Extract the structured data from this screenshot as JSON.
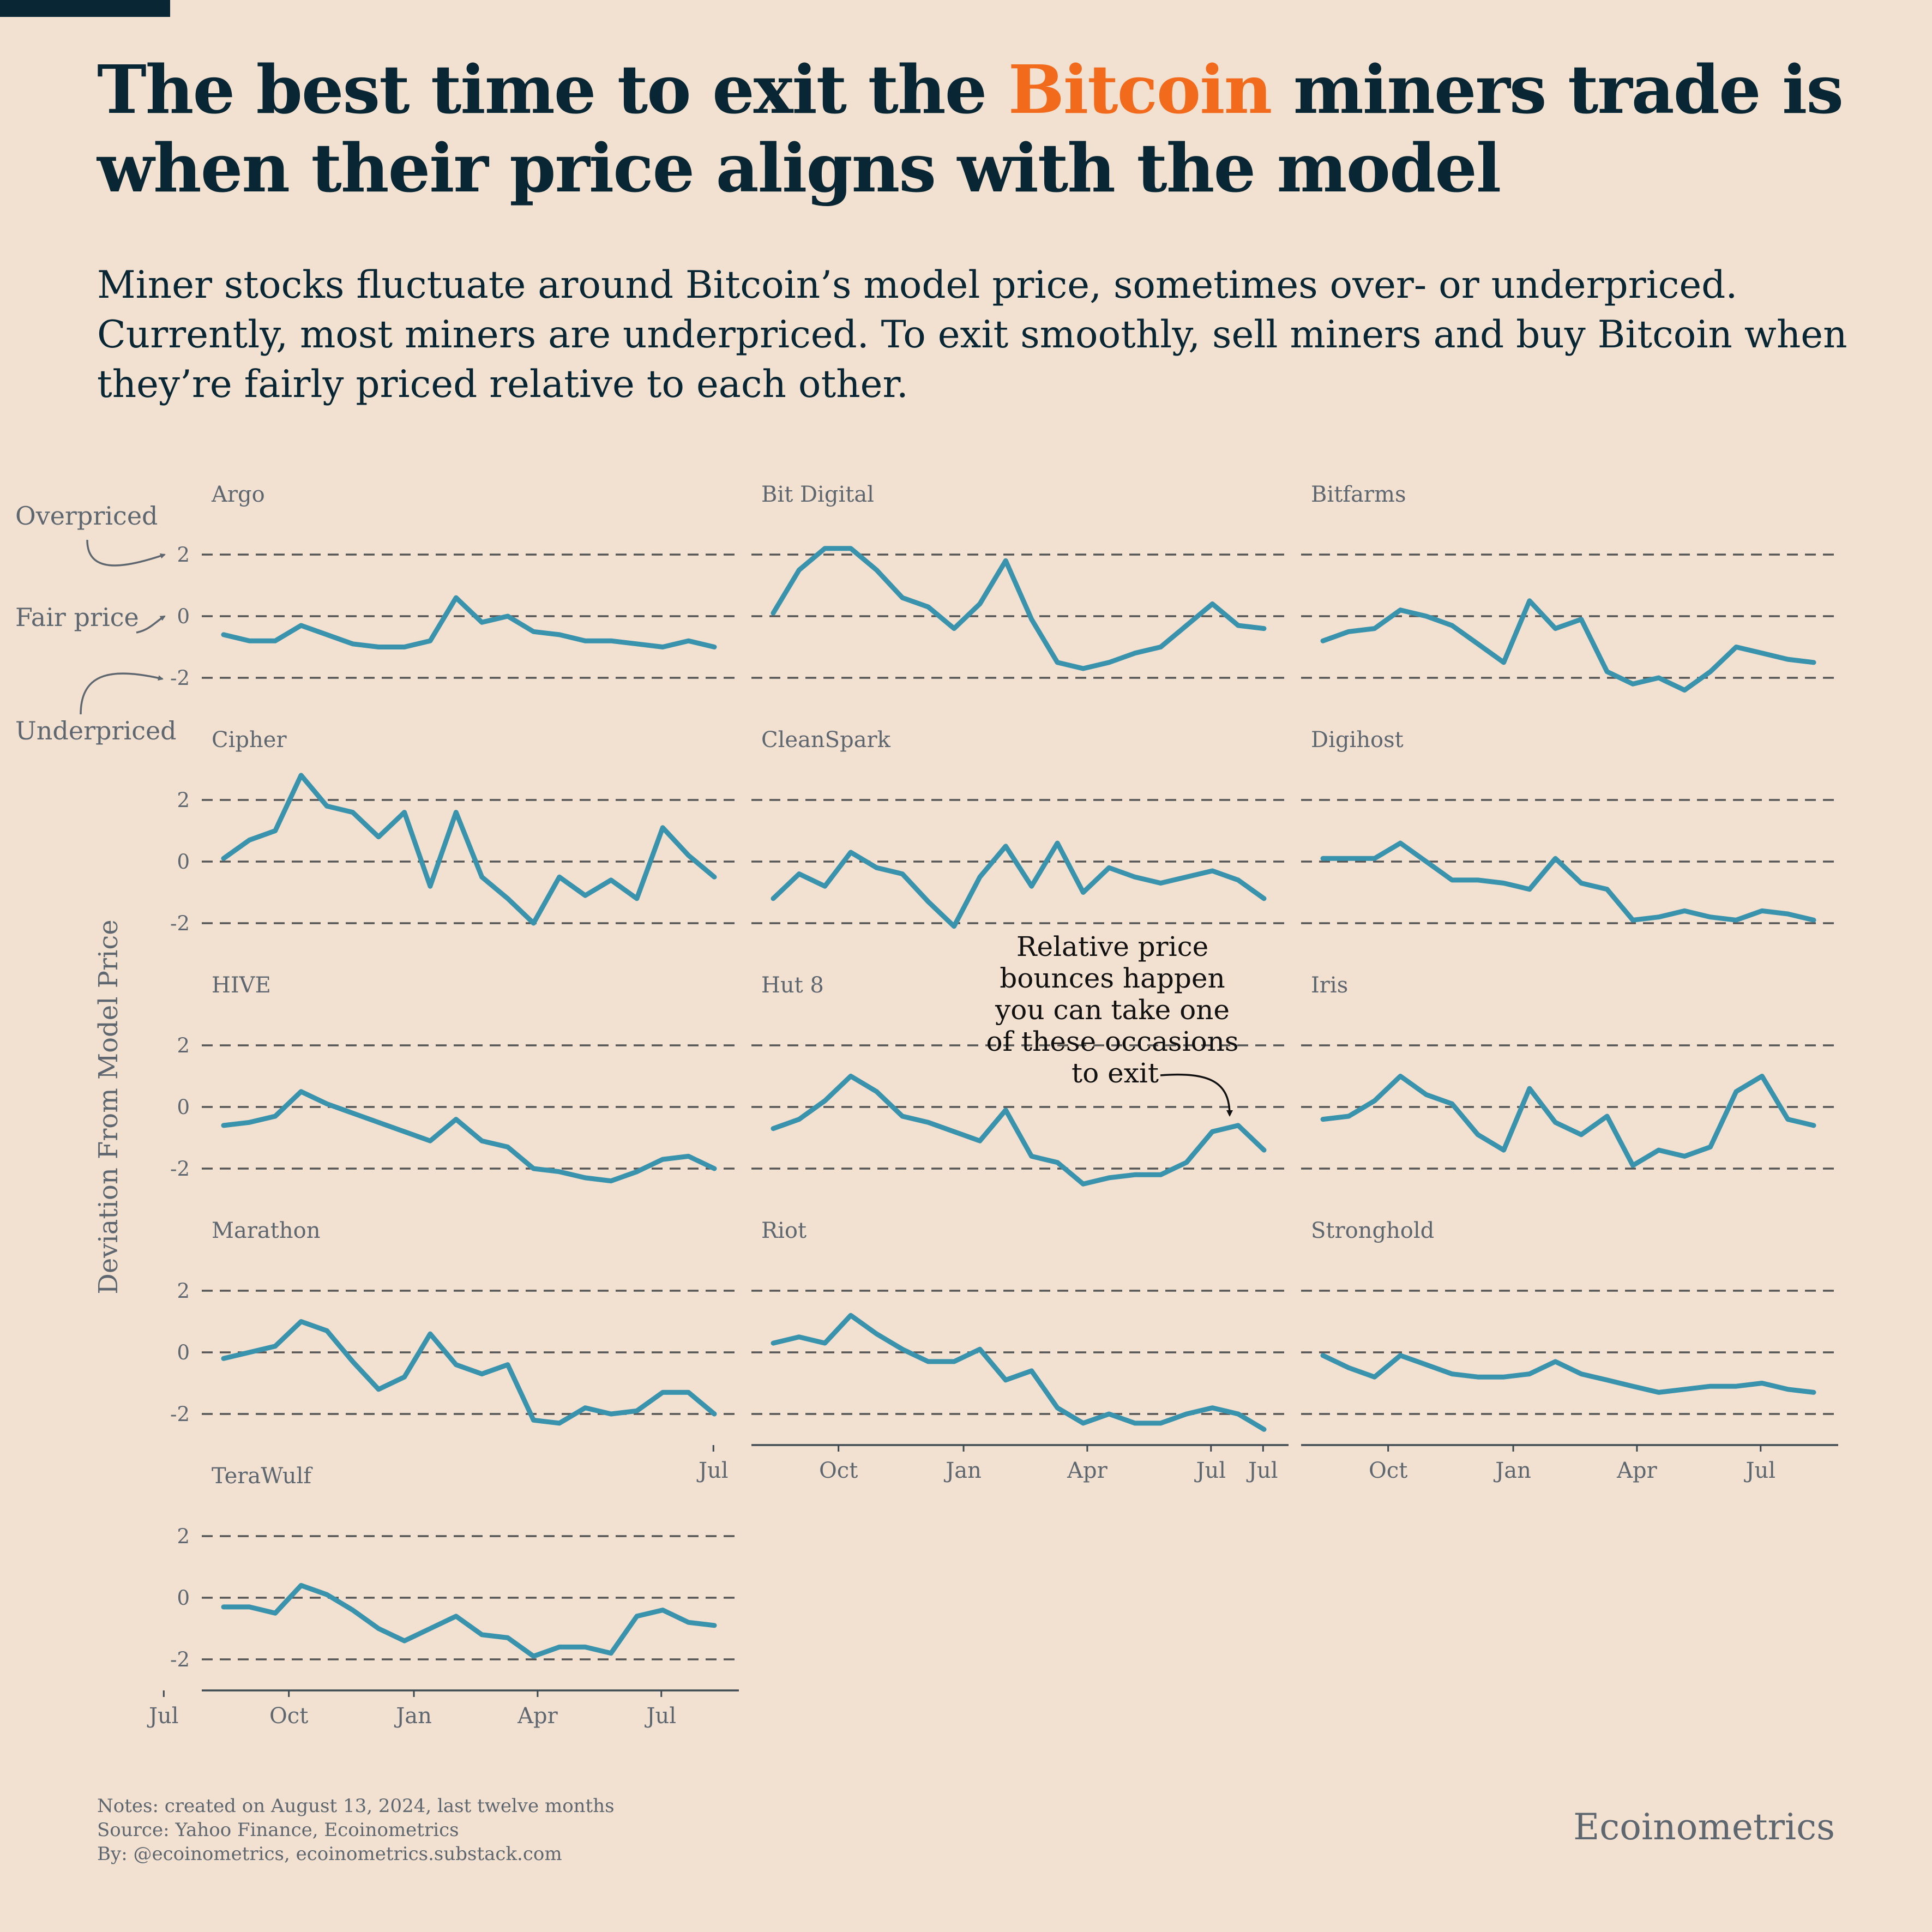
{
  "header": {
    "title_before": "The best time to exit the ",
    "title_highlight": "Bitcoin",
    "title_after": " miners trade is when their price aligns with the model",
    "subtitle": "Miner stocks fluctuate around Bitcoin’s model price, sometimes over- or underpriced. Currently, most miners are underpriced. To exit smoothly, sell miners and buy Bitcoin when they’re fairly priced relative to each other."
  },
  "colors": {
    "background": "#f2e0d0",
    "title_text": "#082633",
    "bitcoin_accent": "#f26a1b",
    "series_line": "#3a93ad",
    "grid_dash": "#555555",
    "muted_text": "#5e6770"
  },
  "legend_annotations": {
    "overpriced": "Overpriced",
    "fair_price": "Fair price",
    "underpriced": "Underpriced"
  },
  "callout": {
    "lines": [
      "Relative price",
      "bounces happen",
      "you can take one",
      "of these occasions",
      "to exit"
    ]
  },
  "chart_data": {
    "type": "line",
    "layout": "small multiples, 3 columns",
    "ylabel": "Deviation From Model Price",
    "ylim": [
      -3,
      3
    ],
    "yticks": [
      2,
      0,
      -2
    ],
    "ytick_labels": [
      "2",
      "0",
      "-2"
    ],
    "grid": "dashed horizontal lines at 2, 0 and -2",
    "x_ticks": [
      "Jul",
      "Oct",
      "Jan",
      "Apr",
      "Jul"
    ],
    "x": [
      "2023-08-14",
      "2023-09-02",
      "2023-09-21",
      "2023-10-10",
      "2023-10-29",
      "2023-11-17",
      "2023-12-06",
      "2023-12-25",
      "2024-01-13",
      "2024-02-01",
      "2024-02-20",
      "2024-03-10",
      "2024-03-29",
      "2024-04-17",
      "2024-05-06",
      "2024-05-25",
      "2024-06-13",
      "2024-07-02",
      "2024-07-21",
      "2024-08-09"
    ],
    "series": [
      {
        "name": "Argo",
        "values": [
          -0.6,
          -0.8,
          -0.8,
          -0.3,
          -0.6,
          -0.9,
          -1.0,
          -1.0,
          -0.8,
          0.6,
          -0.2,
          0.0,
          -0.5,
          -0.6,
          -0.8,
          -0.8,
          -0.9,
          -1.0,
          -0.8,
          -1.0
        ]
      },
      {
        "name": "Bit Digital",
        "values": [
          0.1,
          1.5,
          2.2,
          2.2,
          1.5,
          0.6,
          0.3,
          -0.4,
          0.4,
          1.8,
          -0.1,
          -1.5,
          -1.7,
          -1.5,
          -1.2,
          -1.0,
          -0.3,
          0.4,
          -0.3,
          -0.4
        ]
      },
      {
        "name": "Bitfarms",
        "values": [
          -0.8,
          -0.5,
          -0.4,
          0.2,
          0.0,
          -0.3,
          -0.9,
          -1.5,
          0.5,
          -0.4,
          -0.1,
          -1.8,
          -2.2,
          -2.0,
          -2.4,
          -1.8,
          -1.0,
          -1.2,
          -1.4,
          -1.5
        ]
      },
      {
        "name": "Cipher",
        "values": [
          0.1,
          0.7,
          1.0,
          2.8,
          1.8,
          1.6,
          0.8,
          1.6,
          -0.8,
          1.6,
          -0.5,
          -1.2,
          -2.0,
          -0.5,
          -1.1,
          -0.6,
          -1.2,
          1.1,
          0.2,
          -0.5
        ]
      },
      {
        "name": "CleanSpark",
        "values": [
          -1.2,
          -0.4,
          -0.8,
          0.3,
          -0.2,
          -0.4,
          -1.3,
          -2.1,
          -0.5,
          0.5,
          -0.8,
          0.6,
          -1.0,
          -0.2,
          -0.5,
          -0.7,
          -0.5,
          -0.3,
          -0.6,
          -1.2
        ]
      },
      {
        "name": "Digihost",
        "values": [
          0.1,
          0.1,
          0.1,
          0.6,
          0.0,
          -0.6,
          -0.6,
          -0.7,
          -0.9,
          0.1,
          -0.7,
          -0.9,
          -1.9,
          -1.8,
          -1.6,
          -1.8,
          -1.9,
          -1.6,
          -1.7,
          -1.9
        ]
      },
      {
        "name": "HIVE",
        "values": [
          -0.6,
          -0.5,
          -0.3,
          0.5,
          0.1,
          -0.2,
          -0.5,
          -0.8,
          -1.1,
          -0.4,
          -1.1,
          -1.3,
          -2.0,
          -2.1,
          -2.3,
          -2.4,
          -2.1,
          -1.7,
          -1.6,
          -2.0
        ]
      },
      {
        "name": "Hut 8",
        "values": [
          -0.7,
          -0.4,
          0.2,
          1.0,
          0.5,
          -0.3,
          -0.5,
          -0.8,
          -1.1,
          -0.1,
          -1.6,
          -1.8,
          -2.5,
          -2.3,
          -2.2,
          -2.2,
          -1.8,
          -0.8,
          -0.6,
          -1.4
        ]
      },
      {
        "name": "Iris",
        "values": [
          -0.4,
          -0.3,
          0.2,
          1.0,
          0.4,
          0.1,
          -0.9,
          -1.4,
          0.6,
          -0.5,
          -0.9,
          -0.3,
          -1.9,
          -1.4,
          -1.6,
          -1.3,
          0.5,
          1.0,
          -0.4,
          -0.6
        ]
      },
      {
        "name": "Marathon",
        "values": [
          -0.2,
          0.0,
          0.2,
          1.0,
          0.7,
          -0.3,
          -1.2,
          -0.8,
          0.6,
          -0.4,
          -0.7,
          -0.4,
          -2.2,
          -2.3,
          -1.8,
          -2.0,
          -1.9,
          -1.3,
          -1.3,
          -2.0
        ]
      },
      {
        "name": "Riot",
        "values": [
          0.3,
          0.5,
          0.3,
          1.2,
          0.6,
          0.1,
          -0.3,
          -0.3,
          0.1,
          -0.9,
          -0.6,
          -1.8,
          -2.3,
          -2.0,
          -2.3,
          -2.3,
          -2.0,
          -1.8,
          -2.0,
          -2.5
        ]
      },
      {
        "name": "Stronghold",
        "values": [
          -0.1,
          -0.5,
          -0.8,
          -0.1,
          -0.4,
          -0.7,
          -0.8,
          -0.8,
          -0.7,
          -0.3,
          -0.7,
          -0.9,
          -1.1,
          -1.3,
          -1.2,
          -1.1,
          -1.1,
          -1.0,
          -1.2,
          -1.3
        ]
      },
      {
        "name": "TeraWulf",
        "values": [
          -0.3,
          -0.3,
          -0.5,
          0.4,
          0.1,
          -0.4,
          -1.0,
          -1.4,
          -1.0,
          -0.6,
          -1.2,
          -1.3,
          -1.9,
          -1.6,
          -1.6,
          -1.8,
          -0.6,
          -0.4,
          -0.8,
          -0.9
        ]
      }
    ]
  },
  "footer": {
    "notes": "Notes: created on August 13, 2024, last twelve months",
    "source": "Source: Yahoo Finance, Ecoinometrics",
    "by": "By: @ecoinometrics, ecoinometrics.substack.com",
    "brand": "Ecoinometrics"
  }
}
